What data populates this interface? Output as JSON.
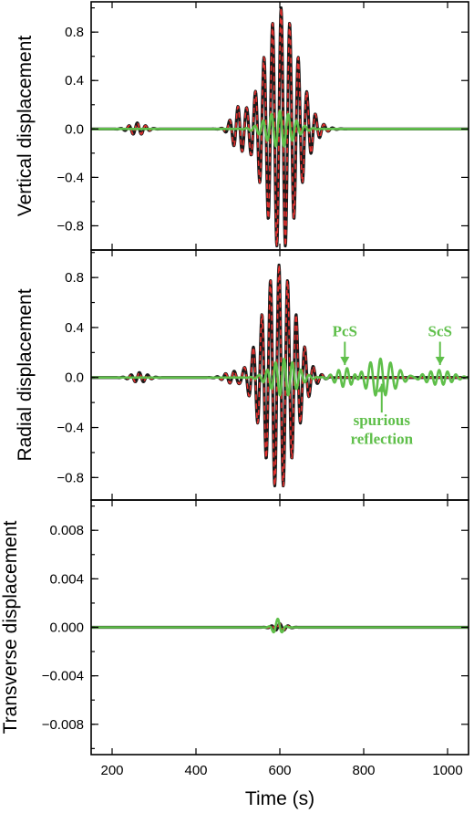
{
  "colors": {
    "black_trace": "#1a1a1a",
    "red_dashed_trace": "#e8312f",
    "green_trace": "#5fbf4a",
    "annotation": "#5fbf4a"
  },
  "chart_data": [
    {
      "type": "line",
      "ylabel": "Vertical displacement",
      "ylim": [
        -1.0,
        1.05
      ],
      "yticks": [
        -0.8,
        -0.4,
        0.0,
        0.4,
        0.8
      ],
      "ytick_labels": [
        "−0.8",
        "−0.4",
        "0.0",
        "0.4",
        "0.8"
      ],
      "xlim": [
        150,
        1050
      ],
      "series": [
        {
          "style": "black-solid",
          "wavelets": [
            {
              "t0": 260,
              "amp": 0.05,
              "period": 20,
              "width": 18
            },
            {
              "t0": 500,
              "amp": 0.15,
              "period": 20,
              "width": 15
            },
            {
              "t0": 603,
              "amp": 1.0,
              "period": 20.5,
              "width": 40
            }
          ]
        },
        {
          "style": "red-dashed",
          "wavelets": [
            {
              "t0": 260,
              "amp": 0.05,
              "period": 20,
              "width": 18
            },
            {
              "t0": 500,
              "amp": 0.15,
              "period": 20,
              "width": 15
            },
            {
              "t0": 603,
              "amp": 1.0,
              "period": 20.5,
              "width": 40
            }
          ]
        },
        {
          "style": "green-solid",
          "wavelets": [
            {
              "t0": 600,
              "amp": 0.15,
              "period": 20,
              "width": 32
            }
          ]
        }
      ],
      "annotations": []
    },
    {
      "type": "line",
      "ylabel": "Radial displacement",
      "ylim": [
        -0.98,
        1.02
      ],
      "yticks": [
        -0.8,
        -0.4,
        0.0,
        0.4,
        0.8
      ],
      "ytick_labels": [
        "−0.8",
        "−0.4",
        "0.0",
        "0.4",
        "0.8"
      ],
      "xlim": [
        150,
        1050
      ],
      "series": [
        {
          "style": "black-solid",
          "wavelets": [
            {
              "t0": 265,
              "amp": 0.04,
              "period": 20,
              "width": 18
            },
            {
              "t0": 490,
              "amp": 0.05,
              "period": 20,
              "width": 20
            },
            {
              "t0": 598,
              "amp": 0.9,
              "period": 20.5,
              "width": 38
            }
          ]
        },
        {
          "style": "red-dashed",
          "wavelets": [
            {
              "t0": 265,
              "amp": 0.04,
              "period": 20,
              "width": 18
            },
            {
              "t0": 490,
              "amp": 0.05,
              "period": 20,
              "width": 20
            },
            {
              "t0": 598,
              "amp": 0.9,
              "period": 20.5,
              "width": 38
            }
          ]
        },
        {
          "style": "green-solid",
          "wavelets": [
            {
              "t0": 610,
              "amp": 0.15,
              "period": 20,
              "width": 30
            },
            {
              "t0": 760,
              "amp": 0.08,
              "period": 20,
              "width": 25
            },
            {
              "t0": 840,
              "amp": 0.15,
              "period": 24,
              "width": 35
            },
            {
              "t0": 980,
              "amp": 0.06,
              "period": 20,
              "width": 30
            }
          ]
        }
      ],
      "annotations": [
        {
          "text": "PcS",
          "x": 755,
          "y": 0.33,
          "arrow_to_y": 0.1
        },
        {
          "text": "ScS",
          "x": 982,
          "y": 0.33,
          "arrow_to_y": 0.1
        },
        {
          "text": "spurious",
          "x": 843,
          "y": -0.38
        },
        {
          "text": "reflection",
          "x": 843,
          "y": -0.53
        }
      ]
    },
    {
      "type": "line",
      "ylabel": "Transverse displacement",
      "ylim": [
        -0.0105,
        0.0105
      ],
      "yticks": [
        -0.008,
        -0.004,
        0.0,
        0.004,
        0.008
      ],
      "ytick_labels": [
        "−0.008",
        "−0.004",
        "0.000",
        "0.004",
        "0.008"
      ],
      "xlim": [
        150,
        1050
      ],
      "xticks": [
        200,
        400,
        600,
        800,
        1000
      ],
      "xtick_labels": [
        "200",
        "400",
        "600",
        "800",
        "1000"
      ],
      "xlabel": "Time (s)",
      "series": [
        {
          "style": "black-solid",
          "wavelets": [
            {
              "t0": 600,
              "amp": 0.0003,
              "period": 20,
              "width": 15
            }
          ]
        },
        {
          "style": "red-dashed",
          "wavelets": [
            {
              "t0": 600,
              "amp": 0.0003,
              "period": 20,
              "width": 15
            }
          ]
        },
        {
          "style": "green-solid",
          "wavelets": [
            {
              "t0": 595,
              "amp": 0.0007,
              "period": 22,
              "width": 10
            }
          ]
        }
      ],
      "annotations": []
    }
  ]
}
